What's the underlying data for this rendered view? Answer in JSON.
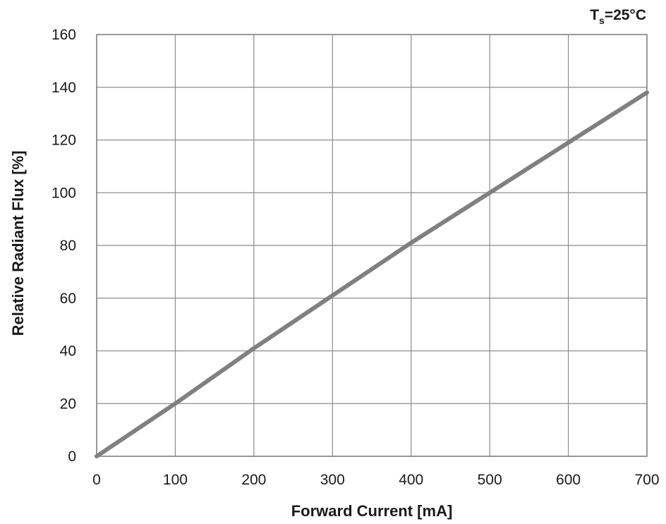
{
  "chart_data": {
    "type": "line",
    "title": "",
    "xlabel": "Forward Current [mA]",
    "ylabel": "Relative Radiant Flux [%]",
    "annotation": {
      "main": "T",
      "sub": "s",
      "rest": "=25°C"
    },
    "xlim": [
      0,
      700
    ],
    "ylim": [
      0,
      160
    ],
    "xticks": [
      0,
      100,
      200,
      300,
      400,
      500,
      600,
      700
    ],
    "yticks": [
      0,
      20,
      40,
      60,
      80,
      100,
      120,
      140,
      160
    ],
    "grid": true,
    "series": [
      {
        "color": "#808080",
        "x": [
          0,
          100,
          200,
          300,
          400,
          500,
          600,
          700
        ],
        "y": [
          0,
          20,
          41,
          61,
          81,
          100,
          119,
          138
        ]
      }
    ]
  }
}
